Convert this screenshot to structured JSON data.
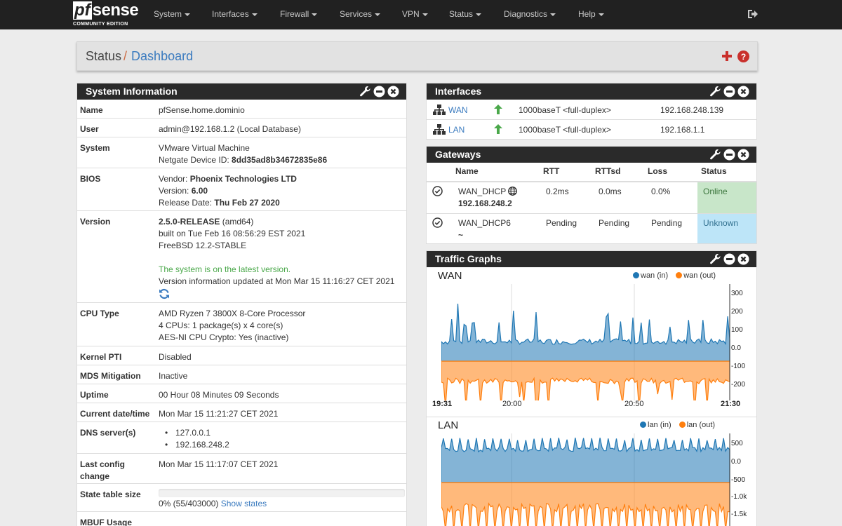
{
  "nav": {
    "brand_pf": "pf",
    "brand_sense": "sense",
    "edition": "COMMUNITY EDITION",
    "menu": [
      "System",
      "Interfaces",
      "Firewall",
      "Services",
      "VPN",
      "Status",
      "Diagnostics",
      "Help"
    ]
  },
  "breadcrumb": {
    "parent": "Status",
    "separator": "/",
    "current": "Dashboard"
  },
  "system_info": {
    "title": "System Information",
    "name": {
      "label": "Name",
      "value": "pfSense.home.dominio"
    },
    "user": {
      "label": "User",
      "value": "admin@192.168.1.2 (Local Database)"
    },
    "system": {
      "label": "System",
      "line1": "VMware Virtual Machine",
      "device_id_label": "Netgate Device ID: ",
      "device_id": "8dd35ad8b34672835e86"
    },
    "bios": {
      "label": "BIOS",
      "vendor_label": "Vendor: ",
      "vendor": "Phoenix Technologies LTD",
      "version_label": "Version: ",
      "version": "6.00",
      "date_label": "Release Date: ",
      "date": "Thu Feb 27 2020"
    },
    "version": {
      "label": "Version",
      "release": "2.5.0-RELEASE",
      "arch": " (amd64)",
      "built": "built on Tue Feb 16 08:56:29 EST 2021",
      "freebsd": "FreeBSD 12.2-STABLE",
      "latest": "The system is on the latest version.",
      "updated": "Version information updated at Mon Mar 15 11:16:27 CET 2021"
    },
    "cpu": {
      "label": "CPU Type",
      "line1": "AMD Ryzen 7 3800X 8-Core Processor",
      "line2": "4 CPUs: 1 package(s) x 4 core(s)",
      "line3": "AES-NI CPU Crypto: Yes (inactive)"
    },
    "kernel_pti": {
      "label": "Kernel PTI",
      "value": "Disabled"
    },
    "mds": {
      "label": "MDS Mitigation",
      "value": "Inactive"
    },
    "uptime": {
      "label": "Uptime",
      "value": "00 Hour 08 Minutes 09 Seconds"
    },
    "datetime": {
      "label": "Current date/time",
      "value": "Mon Mar 15 11:21:27 CET 2021"
    },
    "dns": {
      "label": "DNS server(s)",
      "servers": [
        "127.0.0.1",
        "192.168.248.2"
      ]
    },
    "last_config": {
      "label": "Last config change",
      "value": "Mon Mar 15 11:17:07 CET 2021"
    },
    "state_table": {
      "label": "State table size",
      "value": "0% (55/403000)",
      "link": "Show states",
      "usage_fraction": 0.0001
    },
    "mbuf": {
      "label": "MBUF Usage"
    }
  },
  "interfaces": {
    "title": "Interfaces",
    "rows": [
      {
        "name": "WAN",
        "media": "1000baseT <full-duplex>",
        "ip": "192.168.248.139",
        "status": "up"
      },
      {
        "name": "LAN",
        "media": "1000baseT <full-duplex>",
        "ip": "192.168.1.1",
        "status": "up"
      }
    ]
  },
  "gateways": {
    "title": "Gateways",
    "headers": [
      "Name",
      "RTT",
      "RTTsd",
      "Loss",
      "Status"
    ],
    "rows": [
      {
        "name": "WAN_DHCP",
        "address": "192.168.248.2",
        "rtt": "0.2ms",
        "rttsd": "0.0ms",
        "loss": "0.0%",
        "status": "Online"
      },
      {
        "name": "WAN_DHCP6",
        "address": "~",
        "rtt": "Pending",
        "rttsd": "Pending",
        "loss": "Pending",
        "status": "Unknown"
      }
    ]
  },
  "traffic": {
    "title": "Traffic Graphs",
    "colors": {
      "in": "#1f77b4",
      "out": "#ff7f0e"
    },
    "wan": {
      "title": "WAN",
      "legend_in": "wan (in)",
      "legend_out": "wan (out)",
      "y_ticks": [
        "300",
        "200",
        "100",
        "0.0",
        "-100",
        "-200"
      ],
      "x_ticks": [
        "19:31",
        "20:00",
        "20:50",
        "21:30"
      ]
    },
    "lan": {
      "title": "LAN",
      "legend_in": "lan (in)",
      "legend_out": "lan (out)",
      "y_ticks": [
        "500",
        "0.0",
        "-500",
        "-1.0k",
        "-1.5k"
      ]
    }
  }
}
